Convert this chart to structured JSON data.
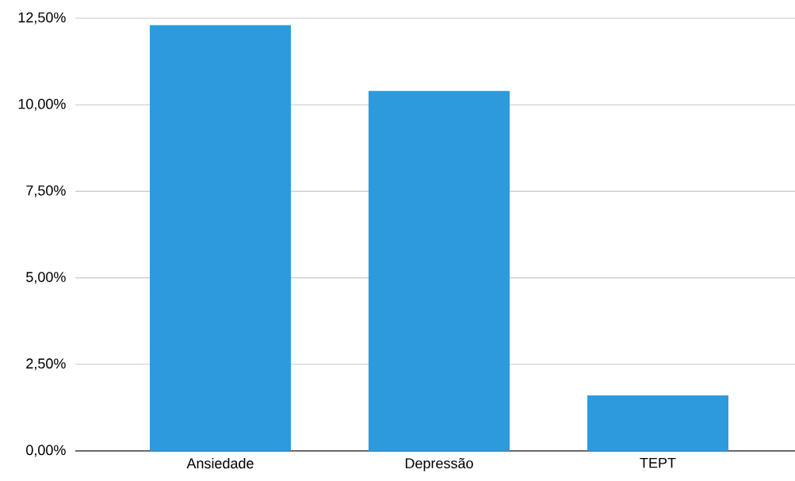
{
  "chart_data": {
    "type": "bar",
    "categories": [
      "Ansiedade",
      "Depressão",
      "TEPT"
    ],
    "values": [
      12.3,
      10.4,
      1.6
    ],
    "color": "#2e9ade",
    "ylim": [
      0,
      12.5
    ],
    "yticks": [
      {
        "value": 0,
        "label": "0,00%"
      },
      {
        "value": 2.5,
        "label": "2,50%"
      },
      {
        "value": 5,
        "label": "5,00%"
      },
      {
        "value": 7.5,
        "label": "7,50%"
      },
      {
        "value": 10,
        "label": "10,00%"
      },
      {
        "value": 12.5,
        "label": "12,50%"
      }
    ],
    "grid": "y"
  }
}
